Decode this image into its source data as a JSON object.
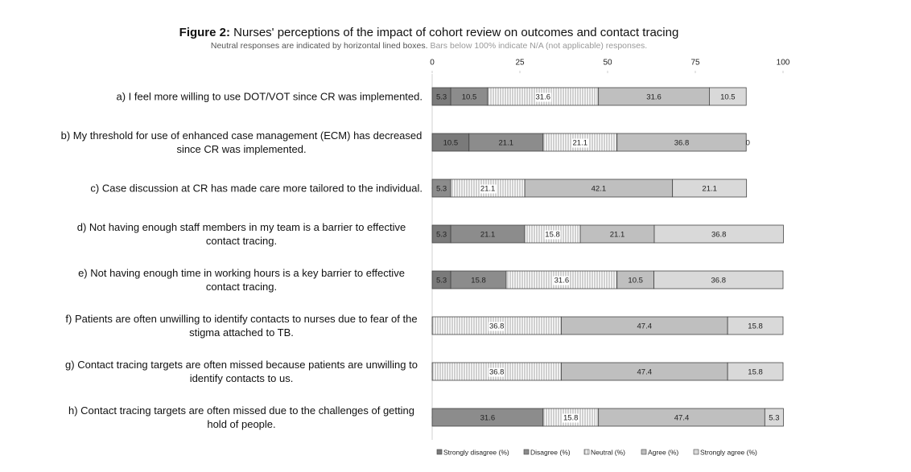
{
  "chart_data": {
    "type": "stacked-bar-horizontal",
    "title_prefix": "Figure 2:",
    "title": "Nurses' perceptions of the impact of cohort review on outcomes and contact tracing",
    "subtitle": "Neutral responses are indicated by horizontal lined boxes.",
    "subtitle_note": "Bars below 100% indicate N/A (not applicable) responses.",
    "categories": [
      "a) I feel more willing to use DOT/VOT since CR was implemented.",
      "b) My threshold for use of enhanced case management (ECM) has decreased since CR was implemented.",
      "c) Case discussion at CR has made care more tailored to the individual.",
      "d) Not having enough staff members in my team is a barrier to effective contact tracing.",
      "e) Not having enough time in working hours is a key barrier to effective contact tracing.",
      "f) Patients are often unwilling to identify contacts to nurses due to fear of the stigma attached to TB.",
      "g) Contact tracing targets are often missed because patients are unwilling to identify contacts to us.",
      "h) Contact tracing targets are often missed due to the challenges of getting hold of people."
    ],
    "series": [
      {
        "name": "Strongly disagree (%)",
        "color": "#7a7a7a",
        "values": [
          5.3,
          10.5,
          0,
          5.3,
          5.3,
          0,
          0,
          0
        ]
      },
      {
        "name": "Disagree (%)",
        "color": "#8c8c8c",
        "values": [
          10.5,
          21.1,
          5.3,
          21.1,
          15.8,
          null,
          null,
          31.6
        ]
      },
      {
        "name": "Neutral (%)",
        "color": "#ffffff",
        "hatch": true,
        "values": [
          31.6,
          21.1,
          21.1,
          15.8,
          31.6,
          36.8,
          36.8,
          15.8
        ]
      },
      {
        "name": "Agree (%)",
        "color": "#bfbfbf",
        "values": [
          31.6,
          36.8,
          42.1,
          21.1,
          10.5,
          47.4,
          47.4,
          47.4
        ]
      },
      {
        "name": "Strongly agree (%)",
        "color": "#d9d9d9",
        "values": [
          10.5,
          0,
          21.1,
          36.8,
          36.8,
          15.8,
          15.8,
          5.3
        ]
      }
    ],
    "xlim": [
      0,
      100
    ],
    "xticks": [
      0,
      25,
      50,
      75,
      100
    ],
    "legend": "bottom"
  }
}
